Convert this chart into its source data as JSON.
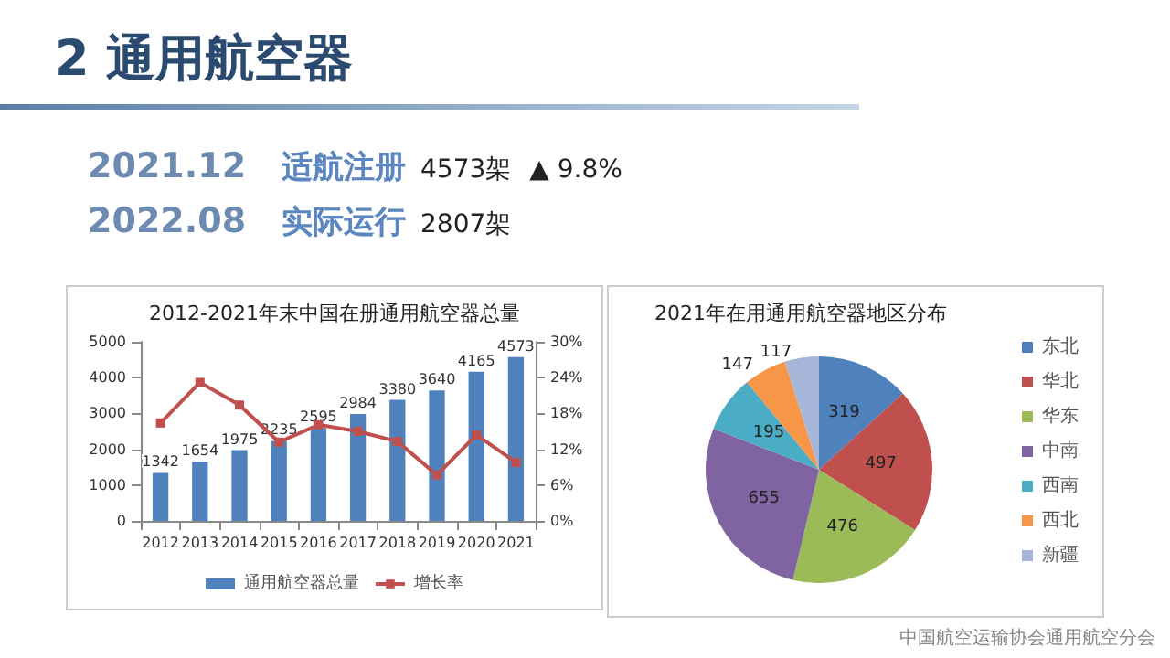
{
  "chart_data": [
    {
      "type": "other",
      "title": "2 通用航空器",
      "annotations": [
        "2021.12",
        "适航注册",
        "4573架",
        "▲ 9.8%",
        "2022.08",
        "实际运行",
        "2807架"
      ]
    },
    {
      "type": "bar",
      "title": "2012-2021年末中国在册通用航空器总量",
      "categories": [
        "2012",
        "2013",
        "2014",
        "2015",
        "2016",
        "2017",
        "2018",
        "2019",
        "2020",
        "2021"
      ],
      "series": [
        {
          "name": "通用航空器总量",
          "type": "bar",
          "color": "#4f81bd",
          "values": [
            1342,
            1654,
            1975,
            2235,
            2595,
            2984,
            3380,
            3640,
            4165,
            4573
          ],
          "data_labels": true
        },
        {
          "name": "增长率",
          "type": "line",
          "axis": "y2",
          "color": "#c0504d",
          "marker": "square",
          "values": [
            16.4,
            23.2,
            19.4,
            13.2,
            16.1,
            15.0,
            13.3,
            7.7,
            14.4,
            9.8
          ]
        }
      ],
      "ylim": [
        0,
        5000
      ],
      "yticks": [
        0,
        1000,
        2000,
        3000,
        4000,
        5000
      ],
      "y2lim": [
        0,
        30
      ],
      "y2ticks": [
        {
          "value": 0,
          "label": "0%"
        },
        {
          "value": 6,
          "label": "6%"
        },
        {
          "value": 12,
          "label": "12%"
        },
        {
          "value": 18,
          "label": "18%"
        },
        {
          "value": 24,
          "label": "24%"
        },
        {
          "value": 30,
          "label": "30%"
        }
      ],
      "grid": false,
      "legend": "bottom"
    },
    {
      "type": "pie",
      "title": "2021年在用通用航空器地区分布",
      "categories": [
        "东北",
        "华北",
        "华东",
        "中南",
        "西南",
        "西北",
        "新疆"
      ],
      "values": [
        319,
        497,
        476,
        655,
        195,
        147,
        117
      ],
      "colors": [
        "#4f81bd",
        "#c0504d",
        "#9bbb59",
        "#8064a2",
        "#4bacc6",
        "#f79646",
        "#a5b6d8"
      ],
      "data_labels": true,
      "legend": "right",
      "annotations": [
        "中国航空运输协会通用航空分会"
      ]
    }
  ]
}
